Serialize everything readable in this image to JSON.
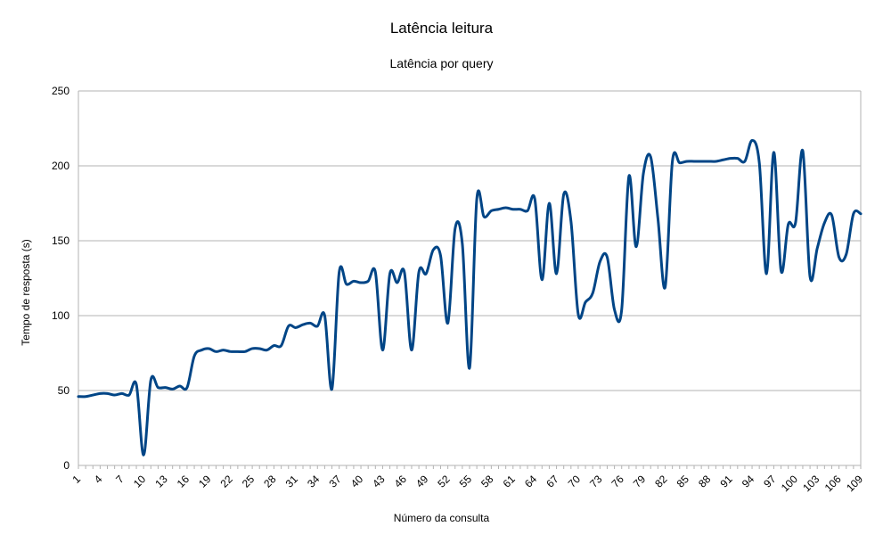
{
  "chart_data": {
    "type": "line",
    "title": "Latência leitura",
    "subtitle": "Latência por query",
    "xlabel": "Número da consulta",
    "ylabel": "Tempo de resposta (s)",
    "ylim": [
      0,
      250
    ],
    "yticks": [
      0,
      50,
      100,
      150,
      200,
      250
    ],
    "xlim": [
      1,
      109
    ],
    "xticks": [
      1,
      4,
      7,
      10,
      13,
      16,
      19,
      22,
      25,
      28,
      31,
      34,
      37,
      40,
      43,
      46,
      49,
      52,
      55,
      58,
      61,
      64,
      67,
      70,
      73,
      76,
      79,
      82,
      85,
      88,
      91,
      94,
      97,
      100,
      103,
      106,
      109
    ],
    "grid": true,
    "legend": "none",
    "line_color": "#004586",
    "x": [
      1,
      2,
      3,
      4,
      5,
      6,
      7,
      8,
      9,
      10,
      11,
      12,
      13,
      14,
      15,
      16,
      17,
      18,
      19,
      20,
      21,
      22,
      23,
      24,
      25,
      26,
      27,
      28,
      29,
      30,
      31,
      32,
      33,
      34,
      35,
      36,
      37,
      38,
      39,
      40,
      41,
      42,
      43,
      44,
      45,
      46,
      47,
      48,
      49,
      50,
      51,
      52,
      53,
      54,
      55,
      56,
      57,
      58,
      59,
      60,
      61,
      62,
      63,
      64,
      65,
      66,
      67,
      68,
      69,
      70,
      71,
      72,
      73,
      74,
      75,
      76,
      77,
      78,
      79,
      80,
      81,
      82,
      83,
      84,
      85,
      86,
      87,
      88,
      89,
      90,
      91,
      92,
      93,
      94,
      95,
      96,
      97,
      98,
      99,
      100,
      101,
      102,
      103,
      104,
      105,
      106,
      107,
      108,
      109
    ],
    "values": [
      46,
      46,
      47,
      48,
      48,
      47,
      48,
      47,
      54,
      7,
      57,
      52,
      52,
      51,
      53,
      52,
      73,
      77,
      78,
      76,
      77,
      76,
      76,
      76,
      78,
      78,
      77,
      80,
      80,
      93,
      92,
      94,
      95,
      93,
      100,
      51,
      129,
      121,
      123,
      122,
      123,
      129,
      77,
      128,
      122,
      129,
      77,
      129,
      128,
      144,
      140,
      95,
      158,
      148,
      65,
      178,
      166,
      170,
      171,
      172,
      171,
      171,
      170,
      178,
      124,
      175,
      128,
      181,
      163,
      101,
      109,
      115,
      136,
      139,
      104,
      104,
      193,
      146,
      195,
      206,
      165,
      119,
      203,
      202,
      203,
      203,
      203,
      203,
      203,
      204,
      205,
      205,
      203,
      217,
      202,
      128,
      209,
      130,
      161,
      162,
      210,
      126,
      145,
      162,
      167,
      139,
      141,
      168,
      168
    ]
  }
}
